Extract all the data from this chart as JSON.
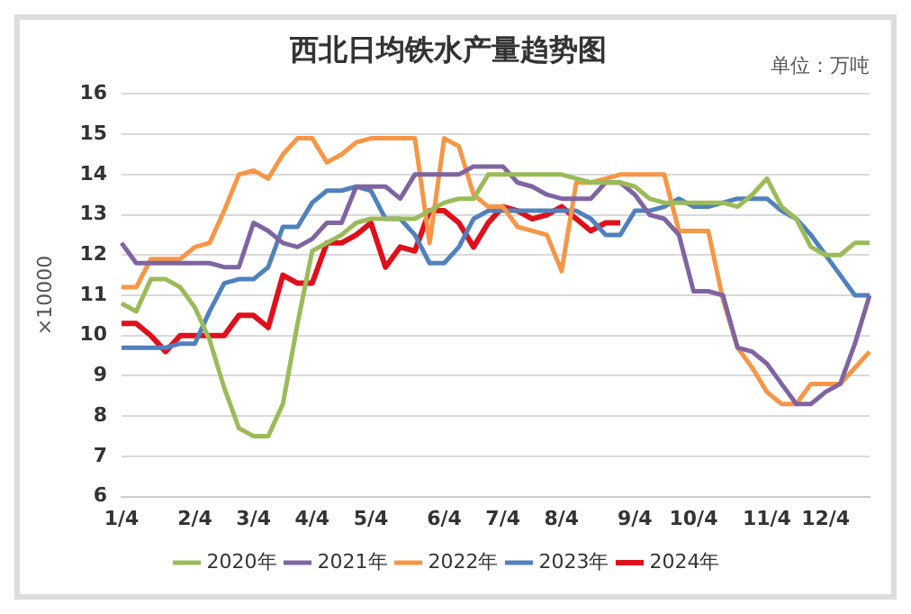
{
  "chart_data": {
    "type": "line",
    "title": "西北日均铁水产量趋势图",
    "ylabel": "×10000",
    "annotations": [
      "单位：万吨"
    ],
    "categories": [
      "1/4",
      null,
      null,
      null,
      null,
      "2/4",
      null,
      null,
      null,
      "3/4",
      null,
      null,
      null,
      "4/4",
      null,
      null,
      null,
      "5/4",
      null,
      null,
      null,
      null,
      "6/4",
      null,
      null,
      null,
      "7/4",
      null,
      null,
      null,
      "8/4",
      null,
      null,
      null,
      null,
      "9/4",
      null,
      null,
      null,
      "10/4",
      null,
      null,
      null,
      null,
      "11/4",
      null,
      null,
      null,
      "12/4",
      null,
      null,
      null
    ],
    "series": [
      {
        "name": "2020年",
        "color": "#9bbb59",
        "values": [
          10.8,
          10.6,
          11.4,
          11.4,
          11.2,
          10.7,
          9.9,
          8.7,
          7.7,
          7.5,
          7.5,
          8.3,
          10.3,
          12.1,
          12.3,
          12.5,
          12.8,
          12.9,
          12.9,
          12.9,
          12.9,
          13.1,
          13.3,
          13.4,
          13.4,
          14,
          14,
          14,
          14,
          14,
          14,
          13.9,
          13.8,
          13.8,
          13.8,
          13.7,
          13.4,
          13.3,
          13.3,
          13.3,
          13.3,
          13.3,
          13.2,
          13.5,
          13.9,
          13.2,
          12.9,
          12.2,
          12,
          12,
          12.3,
          12.3
        ]
      },
      {
        "name": "2021年",
        "color": "#8064a2",
        "values": [
          12.3,
          11.8,
          11.8,
          11.8,
          11.8,
          11.8,
          11.8,
          11.7,
          11.7,
          12.8,
          12.6,
          12.3,
          12.2,
          12.4,
          12.8,
          12.8,
          13.7,
          13.7,
          13.7,
          13.4,
          14,
          14,
          14,
          14,
          14.2,
          14.2,
          14.2,
          13.8,
          13.7,
          13.5,
          13.4,
          13.4,
          13.4,
          13.8,
          13.8,
          13.5,
          13,
          12.9,
          12.5,
          11.1,
          11.1,
          11,
          9.7,
          9.6,
          9.3,
          8.8,
          8.3,
          8.3,
          8.6,
          8.8,
          9.8,
          11
        ]
      },
      {
        "name": "2022年",
        "color": "#f79646",
        "values": [
          11.2,
          11.2,
          11.9,
          11.9,
          11.9,
          12.2,
          12.3,
          13.1,
          14,
          14.1,
          13.9,
          14.5,
          14.9,
          14.9,
          14.3,
          14.5,
          14.8,
          14.9,
          14.9,
          14.9,
          14.9,
          12.3,
          14.9,
          14.7,
          13.5,
          13.2,
          13.2,
          12.7,
          12.6,
          12.5,
          11.6,
          13.8,
          13.8,
          13.9,
          14,
          14,
          14,
          14,
          12.6,
          12.6,
          12.6,
          10.9,
          9.7,
          9.2,
          8.6,
          8.3,
          8.3,
          8.8,
          8.8,
          8.8,
          9.2,
          9.6
        ]
      },
      {
        "name": "2023年",
        "color": "#4f81bd",
        "values": [
          9.7,
          9.7,
          9.7,
          9.7,
          9.8,
          9.8,
          10.6,
          11.3,
          11.4,
          11.4,
          11.7,
          12.7,
          12.7,
          13.3,
          13.6,
          13.6,
          13.7,
          13.6,
          12.9,
          12.9,
          12.5,
          11.8,
          11.8,
          12.2,
          12.9,
          13.1,
          13.1,
          13.1,
          13.1,
          13.1,
          13.1,
          13.1,
          12.9,
          12.5,
          12.5,
          13.1,
          13.1,
          13.2,
          13.4,
          13.2,
          13.2,
          13.3,
          13.4,
          13.4,
          13.4,
          13.1,
          12.9,
          12.5,
          12,
          11.5,
          11,
          11
        ]
      },
      {
        "name": "2024年",
        "color": "#e0101a",
        "values": [
          10.3,
          10.3,
          10,
          9.6,
          10,
          10,
          10,
          10,
          10.5,
          10.5,
          10.2,
          11.5,
          11.3,
          11.3,
          12.3,
          12.3,
          12.5,
          12.8,
          11.7,
          12.2,
          12.1,
          13.1,
          13.1,
          12.8,
          12.2,
          12.8,
          13.2,
          13.1,
          12.9,
          13,
          13.2,
          12.9,
          12.6,
          12.8,
          12.8,
          null,
          null,
          null,
          null,
          null,
          null,
          null,
          null,
          null,
          null,
          null,
          null,
          null,
          null,
          null,
          null,
          null
        ]
      }
    ],
    "ylim": [
      6,
      16
    ],
    "yticks": [
      6,
      7,
      8,
      9,
      10,
      11,
      12,
      13,
      14,
      15,
      16
    ],
    "grid": "y",
    "legend": "bottom",
    "marker": "none",
    "line_style": "solid"
  }
}
